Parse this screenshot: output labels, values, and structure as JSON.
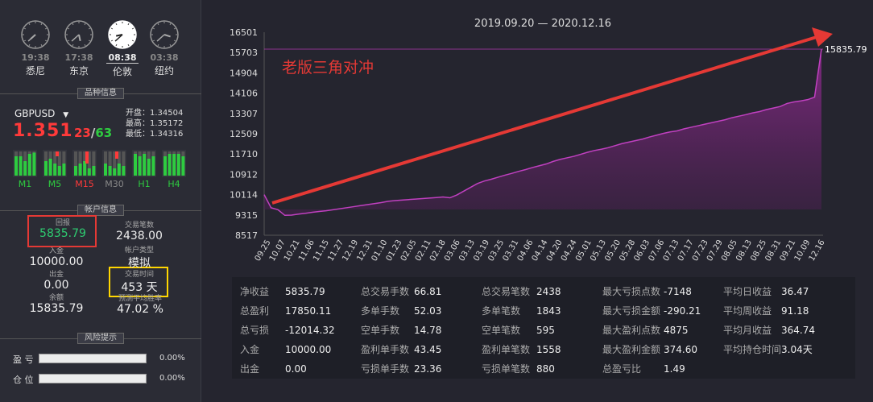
{
  "clocks": [
    {
      "time": "19:38",
      "city": "悉尼",
      "h": 7.6,
      "m": 38,
      "active": false
    },
    {
      "time": "17:38",
      "city": "东京",
      "h": 5.6,
      "m": 38,
      "active": false
    },
    {
      "time": "08:38",
      "city": "伦敦",
      "h": 8.6,
      "m": 38,
      "active": true
    },
    {
      "time": "03:38",
      "city": "纽约",
      "h": 3.6,
      "m": 38,
      "active": false
    }
  ],
  "sections": {
    "symbol_info": "品种信息",
    "account_info": "帐户信息",
    "risk": "风险提示"
  },
  "symbol": {
    "name": "GBPUSD",
    "dropdown_icon": "caret-down-icon",
    "price": "1.351",
    "pip1": "23",
    "sep": "/",
    "pip2": "63",
    "open_label": "开盘：1.34504",
    "high_label": "最高：1.35172",
    "low_label": "最低：1.34316"
  },
  "timeframes": [
    {
      "label": "M1",
      "color": "#2ecc40",
      "up": [
        0.8,
        0.8,
        0.6,
        0.9,
        0.95
      ],
      "red": 0
    },
    {
      "label": "M5",
      "color": "#2ecc40",
      "up": [
        0.6,
        0.7,
        0.5,
        0.4,
        0.5
      ],
      "red": 0.2
    },
    {
      "label": "M15",
      "color": "#ff3a3a",
      "up": [
        0.4,
        0.5,
        0.6,
        0.3,
        0.4
      ],
      "red": 0.5
    },
    {
      "label": "M30",
      "color": "#888888",
      "up": [
        0.5,
        0.4,
        0.3,
        0.5,
        0.4
      ],
      "red": 0.3
    },
    {
      "label": "H1",
      "color": "#2ecc40",
      "up": [
        0.9,
        0.8,
        0.9,
        0.7,
        0.8
      ],
      "red": 0
    },
    {
      "label": "H4",
      "color": "#2ecc40",
      "up": [
        0.8,
        0.9,
        0.9,
        0.9,
        0.8
      ],
      "red": 0
    }
  ],
  "account": {
    "return_label": "回报",
    "return_value": "5835.79",
    "trades_label": "交易笔数",
    "trades_value": "2438.00",
    "deposit_label": "入金",
    "deposit_value": "10000.00",
    "type_label": "帐户类型",
    "type_value": "模拟",
    "withdraw_label": "出金",
    "withdraw_value": "0.00",
    "time_label": "交易时间",
    "time_value": "453 天",
    "balance_label": "余额",
    "balance_value": "15835.79",
    "winrate_label": "预测平均胜率",
    "winrate_value": "47.02 %"
  },
  "risk": [
    {
      "label": "盈  亏",
      "value": "0.00%",
      "fill": 0
    },
    {
      "label": "仓  位",
      "value": "0.00%",
      "fill": 0
    }
  ],
  "chart_data": {
    "type": "area",
    "title": "2019.09.20 — 2020.12.16",
    "annotation": "老版三角对冲",
    "last_value_label": "15835.79",
    "yticks": [
      16501,
      15703,
      14904,
      14106,
      13307,
      12509,
      11710,
      10912,
      10114,
      9315,
      8517
    ],
    "ylim": [
      8517,
      16501
    ],
    "xticks": [
      "09.25",
      "10.07",
      "10.21",
      "11.06",
      "11.15",
      "11.27",
      "12.19",
      "12.31",
      "01.10",
      "01.23",
      "02.05",
      "02.11",
      "02.18",
      "03.06",
      "03.13",
      "03.19",
      "03.25",
      "03.31",
      "04.06",
      "04.14",
      "04.20",
      "04.24",
      "05.01",
      "05.13",
      "05.20",
      "05.28",
      "06.03",
      "07.06",
      "07.13",
      "07.17",
      "07.23",
      "07.29",
      "08.05",
      "08.13",
      "08.25",
      "08.31",
      "09.21",
      "10.09",
      "12.16"
    ],
    "series": [
      {
        "values": [
          10114,
          9600,
          9520,
          9300,
          9310,
          9350,
          9380,
          9420,
          9450,
          9480,
          9520,
          9560,
          9600,
          9640,
          9680,
          9720,
          9760,
          9800,
          9850,
          9880,
          9900,
          9920,
          9940,
          9960,
          9980,
          10000,
          10020,
          9990,
          10100,
          10250,
          10400,
          10550,
          10650,
          10720,
          10800,
          10880,
          10950,
          11030,
          11100,
          11180,
          11250,
          11320,
          11420,
          11500,
          11560,
          11620,
          11700,
          11780,
          11850,
          11900,
          11960,
          12040,
          12120,
          12180,
          12240,
          12300,
          12380,
          12450,
          12520,
          12580,
          12620,
          12700,
          12760,
          12820,
          12880,
          12940,
          13000,
          13060,
          13140,
          13200,
          13260,
          13330,
          13380,
          13460,
          13520,
          13580,
          13700,
          13760,
          13800,
          13850,
          13950,
          15835.79
        ]
      }
    ]
  },
  "stats": [
    [
      {
        "k": "净收益",
        "v": "5835.79"
      },
      {
        "k": "总盈利",
        "v": "17850.11"
      },
      {
        "k": "总亏损",
        "v": "-12014.32"
      },
      {
        "k": "入金",
        "v": "10000.00"
      },
      {
        "k": "出金",
        "v": "0.00"
      }
    ],
    [
      {
        "k": "总交易手数",
        "v": "66.81"
      },
      {
        "k": "多单手数",
        "v": "52.03"
      },
      {
        "k": "空单手数",
        "v": "14.78"
      },
      {
        "k": "盈利单手数",
        "v": "43.45"
      },
      {
        "k": "亏损单手数",
        "v": "23.36"
      }
    ],
    [
      {
        "k": "总交易笔数",
        "v": "2438"
      },
      {
        "k": "多单笔数",
        "v": "1843"
      },
      {
        "k": "空单笔数",
        "v": "595"
      },
      {
        "k": "盈利单笔数",
        "v": "1558"
      },
      {
        "k": "亏损单笔数",
        "v": "880"
      }
    ],
    [
      {
        "k": "最大亏损点数",
        "v": "-7148"
      },
      {
        "k": "最大亏损金额",
        "v": "-290.21"
      },
      {
        "k": "最大盈利点数",
        "v": "4875"
      },
      {
        "k": "最大盈利金额",
        "v": "374.60"
      },
      {
        "k": "总盈亏比",
        "v": "1.49"
      }
    ],
    [
      {
        "k": "平均日收益",
        "v": "36.47"
      },
      {
        "k": "平均周收益",
        "v": "91.18"
      },
      {
        "k": "平均月收益",
        "v": "364.74"
      },
      {
        "k": "平均持仓时间",
        "v": "3.04天"
      }
    ]
  ]
}
